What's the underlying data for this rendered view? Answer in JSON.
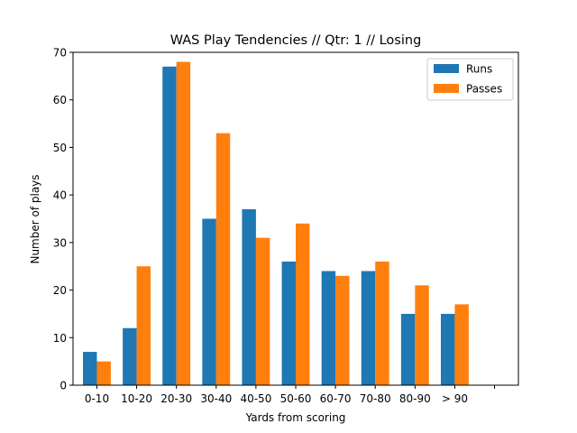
{
  "chart_data": {
    "type": "bar",
    "title": "WAS Play Tendencies // Qtr: 1 // Losing",
    "xlabel": "Yards from scoring",
    "ylabel": "Number of plays",
    "categories": [
      "0-10",
      "10-20",
      "20-30",
      "30-40",
      "40-50",
      "50-60",
      "60-70",
      "70-80",
      "80-90",
      "> 90",
      ""
    ],
    "series": [
      {
        "name": "Runs",
        "color": "#1f77b4",
        "values": [
          7,
          12,
          67,
          35,
          37,
          26,
          24,
          24,
          15,
          15,
          null
        ]
      },
      {
        "name": "Passes",
        "color": "#ff7f0e",
        "values": [
          5,
          25,
          68,
          53,
          31,
          34,
          23,
          26,
          21,
          17,
          null
        ]
      }
    ],
    "ylim": [
      0,
      70
    ],
    "yticks": [
      0,
      10,
      20,
      30,
      40,
      50,
      60,
      70
    ],
    "grid": false,
    "legend_position": "top-right"
  }
}
